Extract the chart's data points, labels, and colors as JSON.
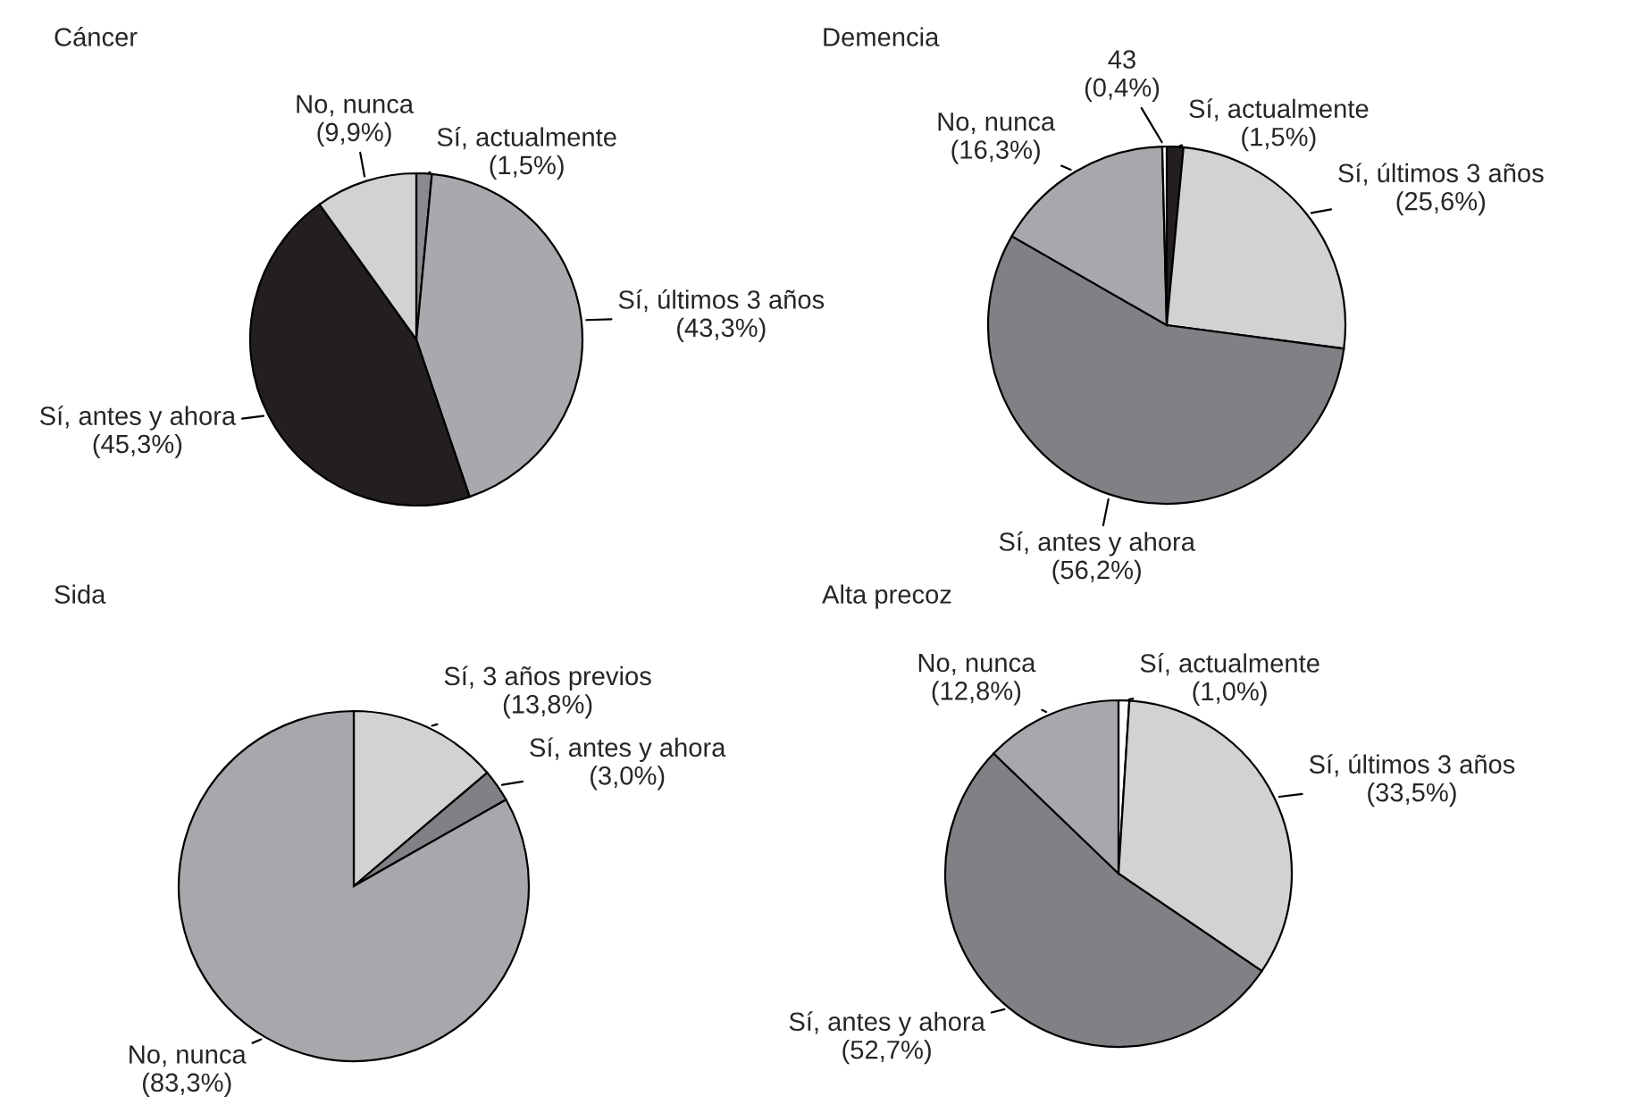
{
  "chart_data": [
    {
      "type": "pie",
      "title": "Cáncer",
      "categories": [
        "Sí, actualmente",
        "Sí, últimos 3 años",
        "Sí, antes y ahora",
        "No, nunca"
      ],
      "values": [
        1.5,
        43.3,
        45.3,
        9.9
      ],
      "value_labels": [
        "(1,5%)",
        "(43,3%)",
        "(45,3%)",
        "(9,9%)"
      ],
      "colors": [
        "#8a8b8e",
        "#a8a9ac",
        "#231f20",
        "#d1d2d4"
      ]
    },
    {
      "type": "pie",
      "title": "Demencia",
      "categories": [
        "Sí, actualmente",
        "Sí, últimos 3 años",
        "Sí, antes y ahora",
        "No, nunca",
        "43"
      ],
      "values": [
        1.5,
        25.6,
        56.2,
        16.3,
        0.4
      ],
      "value_labels": [
        "(1,5%)",
        "(25,6%)",
        "(56,2%)",
        "(16,3%)",
        "(0,4%)"
      ],
      "colors": [
        "#231f20",
        "#d1d2d4",
        "#808184",
        "#a7a8ab",
        "#ffffff"
      ]
    },
    {
      "type": "pie",
      "title": "Sida",
      "categories": [
        "Sí, 3 años previos",
        "Sí, antes y ahora",
        "No, nunca"
      ],
      "values": [
        13.8,
        3.0,
        83.3
      ],
      "value_labels": [
        "(13,8%)",
        "(3,0%)",
        "(83,3%)"
      ],
      "colors": [
        "#d1d2d4",
        "#808184",
        "#a7a8ab"
      ]
    },
    {
      "type": "pie",
      "title": "Alta precoz",
      "categories": [
        "Sí, actualmente",
        "Sí, últimos 3 años",
        "Sí, antes y ahora",
        "No, nunca"
      ],
      "values": [
        1.0,
        33.5,
        52.7,
        12.8
      ],
      "value_labels": [
        "(1,0%)",
        "(33,5%)",
        "(52,7%)",
        "(12,8%)"
      ],
      "colors": [
        "#ffffff",
        "#d1d2d4",
        "#808184",
        "#a7a8ab"
      ]
    }
  ]
}
